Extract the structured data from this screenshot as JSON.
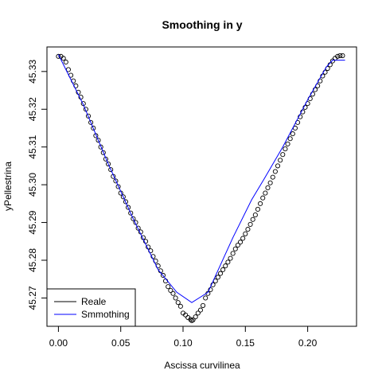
{
  "chart_data": {
    "type": "scatter",
    "title": "Smoothing in y",
    "xlabel": "Ascissa curvilinea",
    "ylabel": "yPellestrina",
    "xlim": [
      -0.0092,
      0.2392
    ],
    "ylim": [
      45.2625,
      45.3365
    ],
    "x_ticks": [
      "0.00",
      "0.05",
      "0.10",
      "0.15",
      "0.20"
    ],
    "x_tick_values": [
      0.0,
      0.05,
      0.1,
      0.15,
      0.2
    ],
    "y_ticks": [
      "45.27",
      "45.28",
      "45.29",
      "45.30",
      "45.31",
      "45.32",
      "45.33"
    ],
    "y_tick_values": [
      45.27,
      45.28,
      45.29,
      45.3,
      45.31,
      45.32,
      45.33
    ],
    "legend_position": "bottom-left",
    "series": [
      {
        "name": "Reale",
        "type": "points",
        "color": "#000000",
        "x": [
          0.0,
          0.002,
          0.004,
          0.006,
          0.008,
          0.01,
          0.012,
          0.014,
          0.016,
          0.018,
          0.02,
          0.022,
          0.024,
          0.026,
          0.028,
          0.03,
          0.032,
          0.034,
          0.036,
          0.038,
          0.04,
          0.042,
          0.044,
          0.046,
          0.048,
          0.05,
          0.052,
          0.054,
          0.056,
          0.058,
          0.06,
          0.062,
          0.064,
          0.066,
          0.068,
          0.07,
          0.072,
          0.074,
          0.076,
          0.078,
          0.08,
          0.082,
          0.084,
          0.086,
          0.088,
          0.09,
          0.092,
          0.094,
          0.096,
          0.098,
          0.1,
          0.102,
          0.104,
          0.106,
          0.107,
          0.108,
          0.11,
          0.112,
          0.114,
          0.116,
          0.118,
          0.12,
          0.122,
          0.124,
          0.126,
          0.128,
          0.13,
          0.132,
          0.134,
          0.136,
          0.138,
          0.14,
          0.142,
          0.144,
          0.146,
          0.148,
          0.15,
          0.152,
          0.154,
          0.156,
          0.158,
          0.16,
          0.162,
          0.164,
          0.166,
          0.168,
          0.17,
          0.172,
          0.174,
          0.176,
          0.178,
          0.18,
          0.182,
          0.184,
          0.186,
          0.188,
          0.19,
          0.192,
          0.194,
          0.196,
          0.198,
          0.2,
          0.202,
          0.204,
          0.206,
          0.208,
          0.21,
          0.212,
          0.214,
          0.216,
          0.218,
          0.22,
          0.222,
          0.224,
          0.226,
          0.228
        ],
        "values": [
          45.334,
          45.334,
          45.3335,
          45.3325,
          45.3305,
          45.329,
          45.3275,
          45.3262,
          45.3245,
          45.3232,
          45.3215,
          45.32,
          45.3182,
          45.3165,
          45.315,
          45.313,
          45.3118,
          45.31,
          45.3085,
          45.3068,
          45.3055,
          45.304,
          45.3022,
          45.301,
          45.2995,
          45.2978,
          45.2968,
          45.2955,
          45.294,
          45.2925,
          45.291,
          45.29,
          45.2885,
          45.2875,
          45.286,
          45.285,
          45.2835,
          45.2825,
          45.281,
          45.2798,
          45.2785,
          45.2772,
          45.276,
          45.2745,
          45.273,
          45.272,
          45.2712,
          45.27,
          45.2688,
          45.2678,
          45.266,
          45.2655,
          45.2648,
          45.2643,
          45.264,
          45.2642,
          45.265,
          45.266,
          45.2668,
          45.268,
          45.27,
          45.2712,
          45.2722,
          45.2735,
          45.2745,
          45.2755,
          45.2765,
          45.2775,
          45.2785,
          45.2795,
          45.2805,
          45.2818,
          45.283,
          45.284,
          45.2848,
          45.2858,
          45.287,
          45.2882,
          45.2895,
          45.2908,
          45.292,
          45.2935,
          45.295,
          45.2965,
          45.2978,
          45.2992,
          45.3005,
          45.302,
          45.3035,
          45.305,
          45.3065,
          45.308,
          45.3095,
          45.3108,
          45.3122,
          45.3135,
          45.315,
          45.3165,
          45.318,
          45.3193,
          45.3205,
          45.3215,
          45.3228,
          45.324,
          45.3252,
          45.3262,
          45.3275,
          45.3288,
          45.3298,
          45.3308,
          45.3318,
          45.3328,
          45.3335,
          45.334,
          45.3342,
          45.3342
        ]
      },
      {
        "name": "Smmothing",
        "type": "line",
        "color": "#0000ff",
        "x": [
          0.0,
          0.02,
          0.04,
          0.06,
          0.08,
          0.095,
          0.107,
          0.12,
          0.14,
          0.155,
          0.165,
          0.18,
          0.2,
          0.215,
          0.22,
          0.23
        ],
        "values": [
          45.3345,
          45.3212,
          45.3055,
          45.291,
          45.2775,
          45.2715,
          45.2688,
          45.2715,
          45.286,
          45.296,
          45.3015,
          45.31,
          45.3225,
          45.3312,
          45.333,
          45.333
        ]
      }
    ]
  }
}
